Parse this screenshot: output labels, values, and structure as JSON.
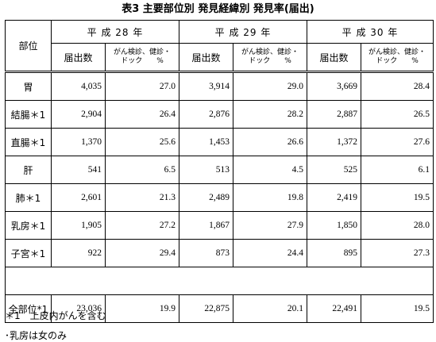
{
  "title": "表3 主要部位別 発見経緯別 発見率(届出)",
  "header": {
    "site": "部位",
    "years": [
      "平 成 28 年",
      "平 成 29 年",
      "平 成 30 年"
    ],
    "count": "届出数",
    "pct_line1": "がん検診、健診・",
    "pct_line2": "ドック　　%"
  },
  "rows": [
    {
      "site": "胃",
      "v": [
        "4,035",
        "27.0",
        "3,914",
        "29.0",
        "3,669",
        "28.4"
      ]
    },
    {
      "site": "結腸＊1",
      "v": [
        "2,904",
        "26.4",
        "2,876",
        "28.2",
        "2,887",
        "26.5"
      ]
    },
    {
      "site": "直腸＊1",
      "v": [
        "1,370",
        "25.6",
        "1,453",
        "26.6",
        "1,372",
        "27.6"
      ]
    },
    {
      "site": "肝",
      "v": [
        "541",
        "6.5",
        "513",
        "4.5",
        "525",
        "6.1"
      ]
    },
    {
      "site": "肺＊1",
      "v": [
        "2,601",
        "21.3",
        "2,489",
        "19.8",
        "2,419",
        "19.5"
      ]
    },
    {
      "site": "乳房＊1",
      "v": [
        "1,905",
        "27.2",
        "1,867",
        "27.9",
        "1,850",
        "28.0"
      ]
    },
    {
      "site": "子宮＊1",
      "v": [
        "922",
        "29.4",
        "873",
        "24.4",
        "895",
        "27.3"
      ]
    }
  ],
  "total": {
    "site": "全部位*1",
    "v": [
      "23,036",
      "19.9",
      "22,875",
      "20.1",
      "22,491",
      "19.5"
    ]
  },
  "notes": [
    "＊1　上皮内がんを含む",
    "･乳房は女のみ"
  ]
}
